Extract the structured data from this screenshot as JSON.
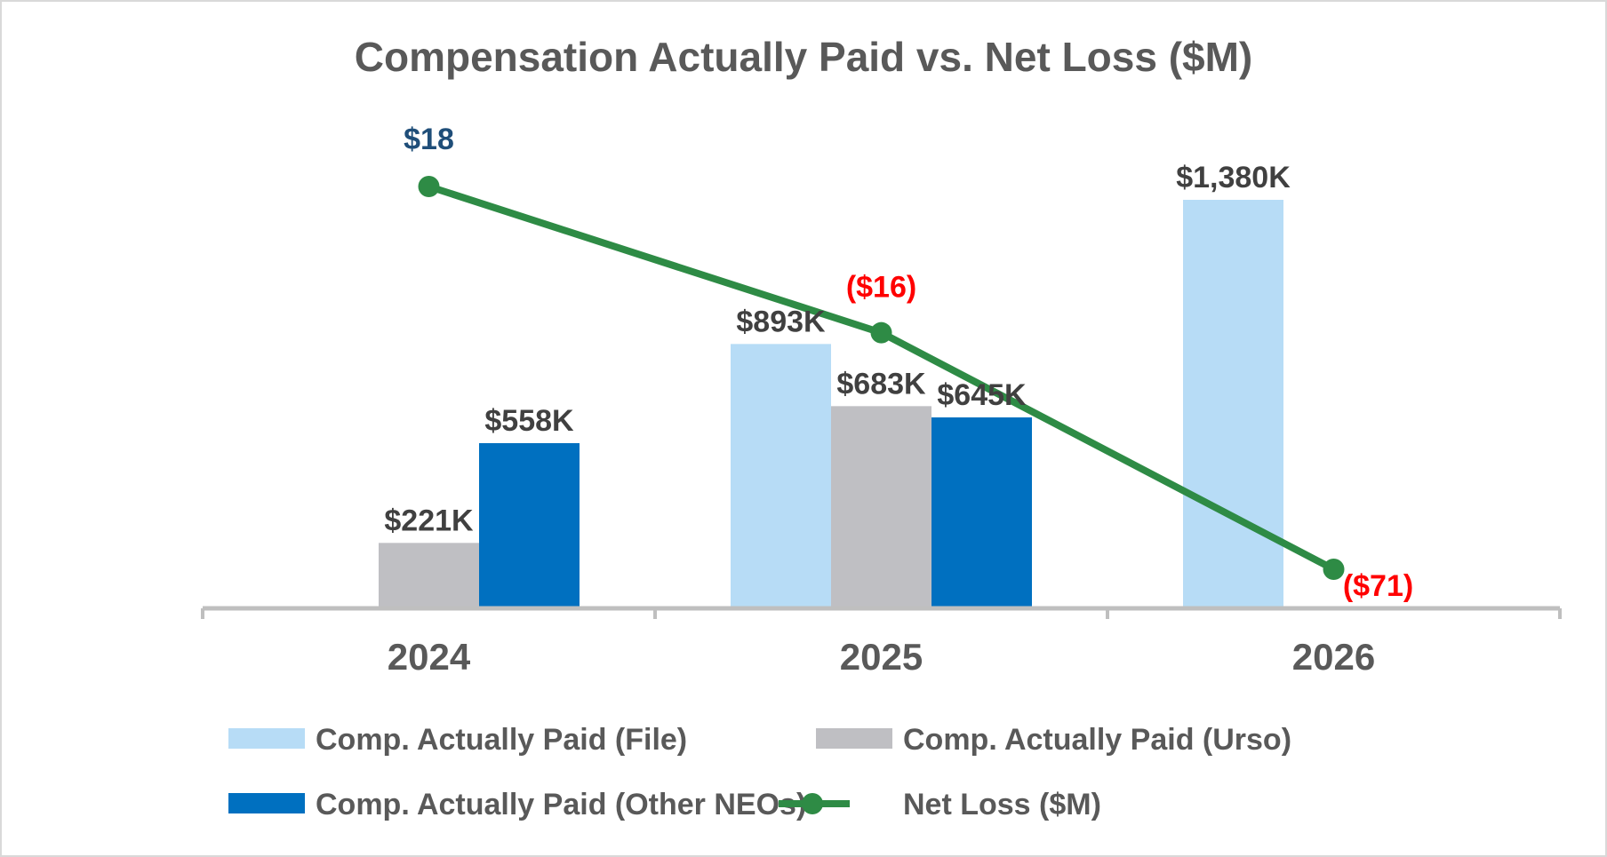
{
  "chart_data": {
    "type": "bar",
    "title": "Compensation Actually Paid vs. Net Loss ($M)",
    "categories": [
      "2024",
      "2025",
      "2026"
    ],
    "bar_ylim": [
      0,
      1500
    ],
    "line_ylim": [
      -75,
      30
    ],
    "series": [
      {
        "name": "Comp. Actually Paid (File)",
        "kind": "bar",
        "color": "#b7dcf6",
        "values": [
          null,
          893,
          1380
        ],
        "labels": [
          "",
          "$893K",
          "$1,380K"
        ],
        "label_color": "#404040"
      },
      {
        "name": "Comp. Actually Paid (Urso)",
        "kind": "bar",
        "color": "#bfbfc3",
        "values": [
          221,
          683,
          null
        ],
        "labels": [
          "$221K",
          "$683K",
          ""
        ],
        "label_color": "#404040"
      },
      {
        "name": "Comp. Actually Paid (Other NEOs)",
        "kind": "bar",
        "color": "#0070c0",
        "values": [
          558,
          645,
          null
        ],
        "labels": [
          "$558K",
          "$645K",
          ""
        ],
        "label_color": "#404040"
      },
      {
        "name": "Net Loss ($M)",
        "kind": "line",
        "color": "#2e8b45",
        "values": [
          18,
          -16,
          -71
        ],
        "labels": [
          "$18",
          "($16)",
          "($71)"
        ],
        "label_colors": [
          "#1f4e79",
          "#ff0000",
          "#ff0000"
        ]
      }
    ],
    "legend_position": "bottom",
    "grid": false
  }
}
